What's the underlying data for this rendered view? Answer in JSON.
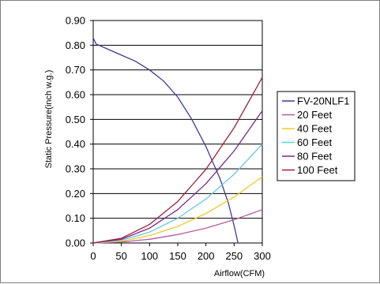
{
  "chart_data": {
    "type": "line",
    "title": "",
    "xlabel": "Airflow(CFM)",
    "ylabel": "Static Pressure(inch w.g.)",
    "xlim": [
      0,
      300
    ],
    "ylim": [
      0,
      0.9
    ],
    "x_ticks": [
      "0",
      "50",
      "100",
      "150",
      "200",
      "250",
      "300"
    ],
    "y_ticks": [
      "0.00",
      "0.10",
      "0.20",
      "0.30",
      "0.40",
      "0.50",
      "0.60",
      "0.70",
      "0.80",
      "0.90"
    ],
    "grid": "horizontal",
    "legend_position": "right",
    "series": [
      {
        "name": "FV-20NLF1",
        "color": "#3c3c96",
        "points": [
          [
            0,
            0.83
          ],
          [
            2,
            0.82
          ],
          [
            5,
            0.805
          ],
          [
            25,
            0.785
          ],
          [
            50,
            0.76
          ],
          [
            75,
            0.735
          ],
          [
            100,
            0.7
          ],
          [
            125,
            0.655
          ],
          [
            150,
            0.59
          ],
          [
            175,
            0.5
          ],
          [
            200,
            0.39
          ],
          [
            225,
            0.26
          ],
          [
            240,
            0.16
          ],
          [
            250,
            0.07
          ],
          [
            257,
            0.0
          ]
        ]
      },
      {
        "name": "20 Feet",
        "color": "#b45aa0",
        "points": [
          [
            0,
            0
          ],
          [
            50,
            0.004
          ],
          [
            100,
            0.015
          ],
          [
            150,
            0.034
          ],
          [
            200,
            0.06
          ],
          [
            250,
            0.094
          ],
          [
            300,
            0.135
          ]
        ]
      },
      {
        "name": "40 Feet",
        "color": "#f0c828",
        "points": [
          [
            0,
            0
          ],
          [
            50,
            0.007
          ],
          [
            100,
            0.03
          ],
          [
            150,
            0.067
          ],
          [
            200,
            0.119
          ],
          [
            250,
            0.186
          ],
          [
            300,
            0.268
          ]
        ]
      },
      {
        "name": "60 Feet",
        "color": "#64c8e6",
        "points": [
          [
            0,
            0
          ],
          [
            50,
            0.011
          ],
          [
            100,
            0.044
          ],
          [
            150,
            0.1
          ],
          [
            200,
            0.178
          ],
          [
            250,
            0.278
          ],
          [
            300,
            0.4
          ]
        ]
      },
      {
        "name": "80 Feet",
        "color": "#78288c",
        "points": [
          [
            0,
            0
          ],
          [
            50,
            0.015
          ],
          [
            100,
            0.06
          ],
          [
            150,
            0.135
          ],
          [
            200,
            0.24
          ],
          [
            250,
            0.372
          ],
          [
            300,
            0.535
          ]
        ]
      },
      {
        "name": "100 Feet",
        "color": "#a01e3c",
        "points": [
          [
            0,
            0
          ],
          [
            50,
            0.019
          ],
          [
            100,
            0.075
          ],
          [
            150,
            0.168
          ],
          [
            200,
            0.298
          ],
          [
            250,
            0.466
          ],
          [
            300,
            0.67
          ]
        ]
      }
    ]
  }
}
